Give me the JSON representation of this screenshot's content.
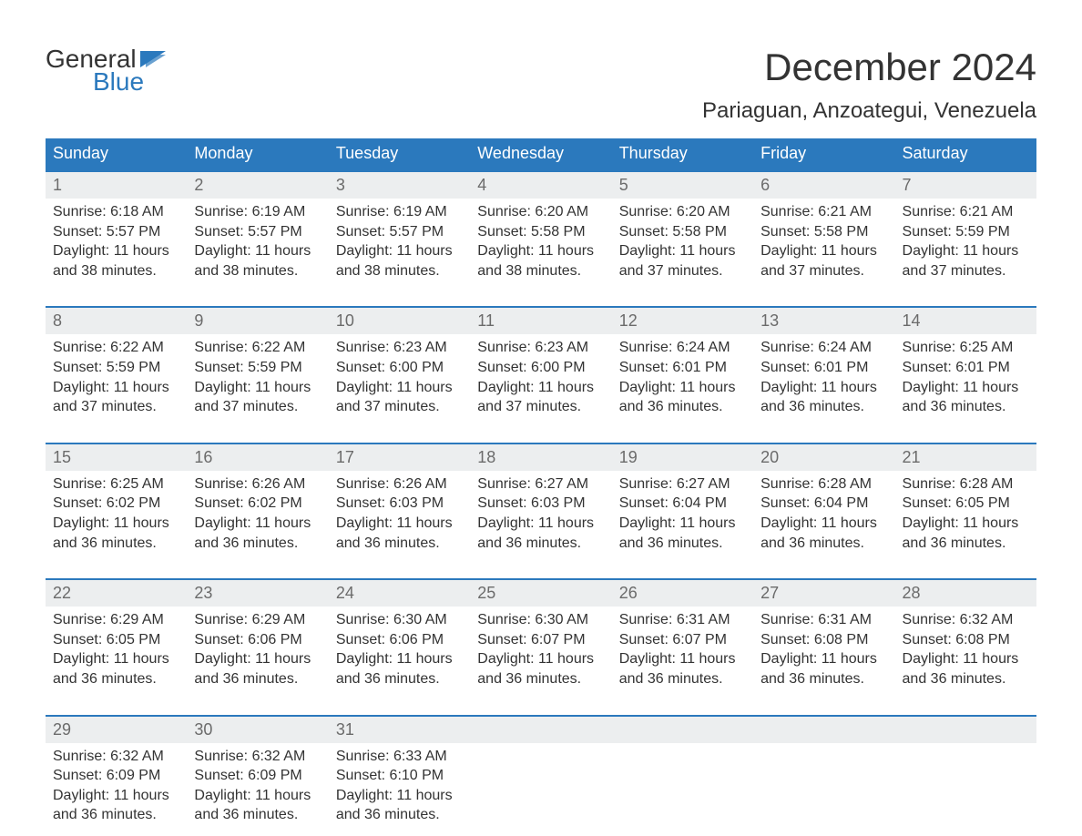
{
  "logo": {
    "line1": "General",
    "line2": "Blue"
  },
  "title": "December 2024",
  "location": "Pariaguan, Anzoategui, Venezuela",
  "colors": {
    "header_bg": "#2b79bd",
    "header_text": "#ffffff",
    "row_accent": "#2b79bd",
    "daynum_bg": "#eceeef",
    "daynum_text": "#6b6b6b",
    "body_text": "#333333",
    "background": "#ffffff",
    "logo_blue": "#2b79bd"
  },
  "typography": {
    "title_fontsize": 42,
    "location_fontsize": 24,
    "weekday_fontsize": 18,
    "daynum_fontsize": 18,
    "body_fontsize": 16,
    "logo_fontsize": 28,
    "font_family": "Arial"
  },
  "weekdays": [
    "Sunday",
    "Monday",
    "Tuesday",
    "Wednesday",
    "Thursday",
    "Friday",
    "Saturday"
  ],
  "weeks": [
    [
      {
        "n": "1",
        "sunrise": "Sunrise: 6:18 AM",
        "sunset": "Sunset: 5:57 PM",
        "day1": "Daylight: 11 hours",
        "day2": "and 38 minutes."
      },
      {
        "n": "2",
        "sunrise": "Sunrise: 6:19 AM",
        "sunset": "Sunset: 5:57 PM",
        "day1": "Daylight: 11 hours",
        "day2": "and 38 minutes."
      },
      {
        "n": "3",
        "sunrise": "Sunrise: 6:19 AM",
        "sunset": "Sunset: 5:57 PM",
        "day1": "Daylight: 11 hours",
        "day2": "and 38 minutes."
      },
      {
        "n": "4",
        "sunrise": "Sunrise: 6:20 AM",
        "sunset": "Sunset: 5:58 PM",
        "day1": "Daylight: 11 hours",
        "day2": "and 38 minutes."
      },
      {
        "n": "5",
        "sunrise": "Sunrise: 6:20 AM",
        "sunset": "Sunset: 5:58 PM",
        "day1": "Daylight: 11 hours",
        "day2": "and 37 minutes."
      },
      {
        "n": "6",
        "sunrise": "Sunrise: 6:21 AM",
        "sunset": "Sunset: 5:58 PM",
        "day1": "Daylight: 11 hours",
        "day2": "and 37 minutes."
      },
      {
        "n": "7",
        "sunrise": "Sunrise: 6:21 AM",
        "sunset": "Sunset: 5:59 PM",
        "day1": "Daylight: 11 hours",
        "day2": "and 37 minutes."
      }
    ],
    [
      {
        "n": "8",
        "sunrise": "Sunrise: 6:22 AM",
        "sunset": "Sunset: 5:59 PM",
        "day1": "Daylight: 11 hours",
        "day2": "and 37 minutes."
      },
      {
        "n": "9",
        "sunrise": "Sunrise: 6:22 AM",
        "sunset": "Sunset: 5:59 PM",
        "day1": "Daylight: 11 hours",
        "day2": "and 37 minutes."
      },
      {
        "n": "10",
        "sunrise": "Sunrise: 6:23 AM",
        "sunset": "Sunset: 6:00 PM",
        "day1": "Daylight: 11 hours",
        "day2": "and 37 minutes."
      },
      {
        "n": "11",
        "sunrise": "Sunrise: 6:23 AM",
        "sunset": "Sunset: 6:00 PM",
        "day1": "Daylight: 11 hours",
        "day2": "and 37 minutes."
      },
      {
        "n": "12",
        "sunrise": "Sunrise: 6:24 AM",
        "sunset": "Sunset: 6:01 PM",
        "day1": "Daylight: 11 hours",
        "day2": "and 36 minutes."
      },
      {
        "n": "13",
        "sunrise": "Sunrise: 6:24 AM",
        "sunset": "Sunset: 6:01 PM",
        "day1": "Daylight: 11 hours",
        "day2": "and 36 minutes."
      },
      {
        "n": "14",
        "sunrise": "Sunrise: 6:25 AM",
        "sunset": "Sunset: 6:01 PM",
        "day1": "Daylight: 11 hours",
        "day2": "and 36 minutes."
      }
    ],
    [
      {
        "n": "15",
        "sunrise": "Sunrise: 6:25 AM",
        "sunset": "Sunset: 6:02 PM",
        "day1": "Daylight: 11 hours",
        "day2": "and 36 minutes."
      },
      {
        "n": "16",
        "sunrise": "Sunrise: 6:26 AM",
        "sunset": "Sunset: 6:02 PM",
        "day1": "Daylight: 11 hours",
        "day2": "and 36 minutes."
      },
      {
        "n": "17",
        "sunrise": "Sunrise: 6:26 AM",
        "sunset": "Sunset: 6:03 PM",
        "day1": "Daylight: 11 hours",
        "day2": "and 36 minutes."
      },
      {
        "n": "18",
        "sunrise": "Sunrise: 6:27 AM",
        "sunset": "Sunset: 6:03 PM",
        "day1": "Daylight: 11 hours",
        "day2": "and 36 minutes."
      },
      {
        "n": "19",
        "sunrise": "Sunrise: 6:27 AM",
        "sunset": "Sunset: 6:04 PM",
        "day1": "Daylight: 11 hours",
        "day2": "and 36 minutes."
      },
      {
        "n": "20",
        "sunrise": "Sunrise: 6:28 AM",
        "sunset": "Sunset: 6:04 PM",
        "day1": "Daylight: 11 hours",
        "day2": "and 36 minutes."
      },
      {
        "n": "21",
        "sunrise": "Sunrise: 6:28 AM",
        "sunset": "Sunset: 6:05 PM",
        "day1": "Daylight: 11 hours",
        "day2": "and 36 minutes."
      }
    ],
    [
      {
        "n": "22",
        "sunrise": "Sunrise: 6:29 AM",
        "sunset": "Sunset: 6:05 PM",
        "day1": "Daylight: 11 hours",
        "day2": "and 36 minutes."
      },
      {
        "n": "23",
        "sunrise": "Sunrise: 6:29 AM",
        "sunset": "Sunset: 6:06 PM",
        "day1": "Daylight: 11 hours",
        "day2": "and 36 minutes."
      },
      {
        "n": "24",
        "sunrise": "Sunrise: 6:30 AM",
        "sunset": "Sunset: 6:06 PM",
        "day1": "Daylight: 11 hours",
        "day2": "and 36 minutes."
      },
      {
        "n": "25",
        "sunrise": "Sunrise: 6:30 AM",
        "sunset": "Sunset: 6:07 PM",
        "day1": "Daylight: 11 hours",
        "day2": "and 36 minutes."
      },
      {
        "n": "26",
        "sunrise": "Sunrise: 6:31 AM",
        "sunset": "Sunset: 6:07 PM",
        "day1": "Daylight: 11 hours",
        "day2": "and 36 minutes."
      },
      {
        "n": "27",
        "sunrise": "Sunrise: 6:31 AM",
        "sunset": "Sunset: 6:08 PM",
        "day1": "Daylight: 11 hours",
        "day2": "and 36 minutes."
      },
      {
        "n": "28",
        "sunrise": "Sunrise: 6:32 AM",
        "sunset": "Sunset: 6:08 PM",
        "day1": "Daylight: 11 hours",
        "day2": "and 36 minutes."
      }
    ],
    [
      {
        "n": "29",
        "sunrise": "Sunrise: 6:32 AM",
        "sunset": "Sunset: 6:09 PM",
        "day1": "Daylight: 11 hours",
        "day2": "and 36 minutes."
      },
      {
        "n": "30",
        "sunrise": "Sunrise: 6:32 AM",
        "sunset": "Sunset: 6:09 PM",
        "day1": "Daylight: 11 hours",
        "day2": "and 36 minutes."
      },
      {
        "n": "31",
        "sunrise": "Sunrise: 6:33 AM",
        "sunset": "Sunset: 6:10 PM",
        "day1": "Daylight: 11 hours",
        "day2": "and 36 minutes."
      },
      null,
      null,
      null,
      null
    ]
  ]
}
